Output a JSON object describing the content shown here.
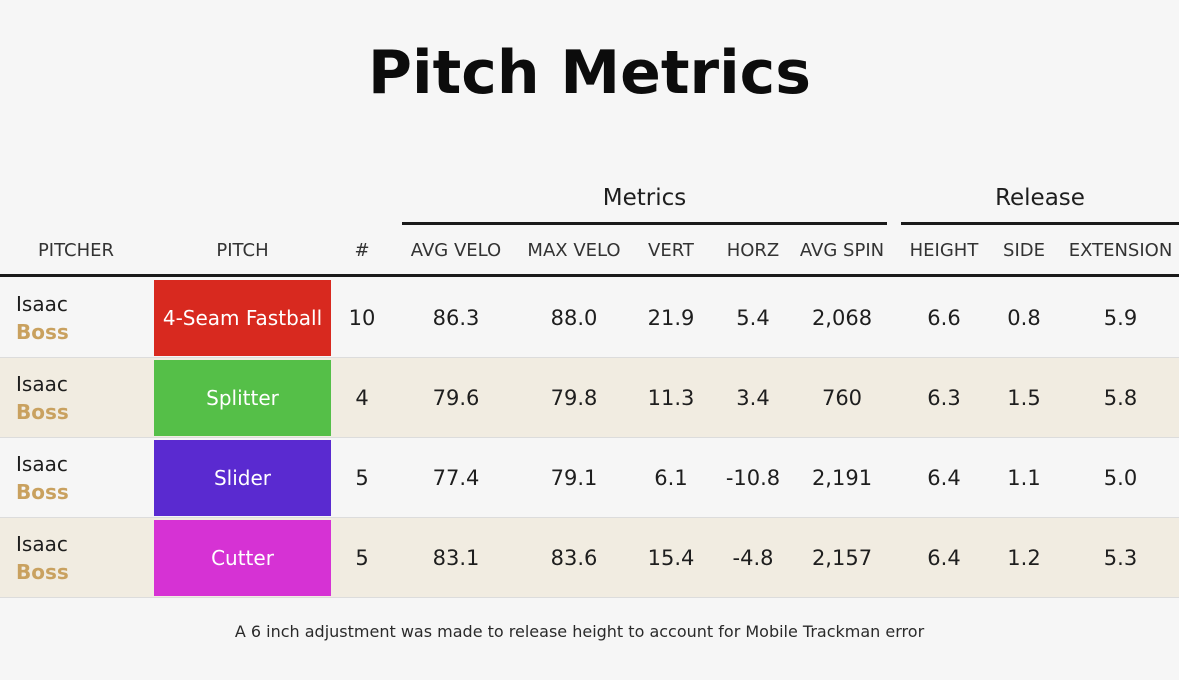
{
  "title": "Pitch Metrics",
  "groups": {
    "metrics": "Metrics",
    "release": "Release"
  },
  "columns": {
    "pitcher": "PITCHER",
    "pitch": "PITCH",
    "count": "#",
    "avg_velo": "AVG VELO",
    "max_velo": "MAX VELO",
    "vert": "VERT",
    "horz": "HORZ",
    "avg_spin": "AVG SPIN",
    "height": "HEIGHT",
    "side": "SIDE",
    "extension": "EXTENSION"
  },
  "rows": [
    {
      "pitcher_first": "Isaac",
      "pitcher_last": "Boss",
      "pitch": "4-Seam Fastball",
      "pitch_color": "#d8291f",
      "count": "10",
      "avg_velo": "86.3",
      "max_velo": "88.0",
      "vert": "21.9",
      "horz": "5.4",
      "avg_spin": "2,068",
      "height": "6.6",
      "side": "0.8",
      "extension": "5.9"
    },
    {
      "pitcher_first": "Isaac",
      "pitcher_last": "Boss",
      "pitch": "Splitter",
      "pitch_color": "#55bf48",
      "count": "4",
      "avg_velo": "79.6",
      "max_velo": "79.8",
      "vert": "11.3",
      "horz": "3.4",
      "avg_spin": "760",
      "height": "6.3",
      "side": "1.5",
      "extension": "5.8"
    },
    {
      "pitcher_first": "Isaac",
      "pitcher_last": "Boss",
      "pitch": "Slider",
      "pitch_color": "#5a2ad0",
      "count": "5",
      "avg_velo": "77.4",
      "max_velo": "79.1",
      "vert": "6.1",
      "horz": "-10.8",
      "avg_spin": "2,191",
      "height": "6.4",
      "side": "1.1",
      "extension": "5.0"
    },
    {
      "pitcher_first": "Isaac",
      "pitcher_last": "Boss",
      "pitch": "Cutter",
      "pitch_color": "#d632d4",
      "count": "5",
      "avg_velo": "83.1",
      "max_velo": "83.6",
      "vert": "15.4",
      "horz": "-4.8",
      "avg_spin": "2,157",
      "height": "6.4",
      "side": "1.2",
      "extension": "5.3"
    }
  ],
  "footnote": "A 6 inch adjustment was made to release height to account for Mobile Trackman error"
}
